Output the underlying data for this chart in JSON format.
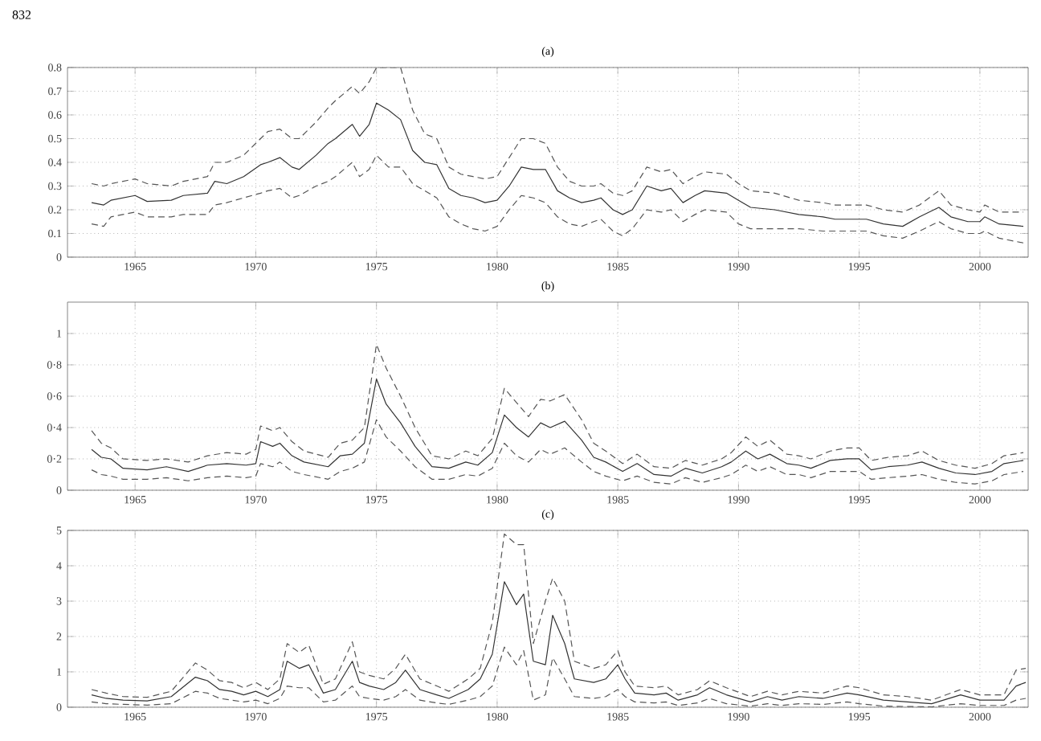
{
  "chart_data": [
    {
      "type": "line",
      "title": "(a)",
      "annotations": [
        "832"
      ],
      "grid": true,
      "xlim": [
        1962.2,
        2002
      ],
      "xticks": [
        1965,
        1970,
        1975,
        1980,
        1985,
        1990,
        1995,
        2000
      ],
      "ylim": [
        0,
        0.8
      ],
      "yticks": [
        0,
        0.1,
        0.2,
        0.3,
        0.4,
        0.5,
        0.6,
        0.7,
        0.8
      ],
      "x": [
        1963.2,
        1963.7,
        1964,
        1965,
        1965.5,
        1966.5,
        1967,
        1968,
        1968.3,
        1968.8,
        1969.5,
        1970.2,
        1970.5,
        1971,
        1971.5,
        1971.8,
        1972.5,
        1973,
        1973.3,
        1974,
        1974.3,
        1974.7,
        1975,
        1975.5,
        1976,
        1976.5,
        1977,
        1977.5,
        1978,
        1978.5,
        1979,
        1979.5,
        1980,
        1980.5,
        1981,
        1981.5,
        1982,
        1982.5,
        1983,
        1983.5,
        1984,
        1984.3,
        1984.8,
        1985.2,
        1985.6,
        1986.2,
        1986.8,
        1987.2,
        1987.7,
        1988.2,
        1988.6,
        1989.5,
        1990,
        1990.5,
        1991.5,
        1992.5,
        1993.5,
        1994,
        1995.3,
        1996,
        1996.8,
        1997.5,
        1998.3,
        1998.8,
        1999.5,
        2000,
        2000.2,
        2000.8,
        2001.8
      ],
      "series": [
        {
          "color": "#333333",
          "line_style": "solid",
          "values": [
            0.23,
            0.22,
            0.24,
            0.26,
            0.235,
            0.24,
            0.26,
            0.27,
            0.32,
            0.31,
            0.34,
            0.39,
            0.4,
            0.42,
            0.38,
            0.37,
            0.43,
            0.48,
            0.5,
            0.56,
            0.51,
            0.56,
            0.65,
            0.62,
            0.58,
            0.45,
            0.4,
            0.39,
            0.29,
            0.26,
            0.25,
            0.23,
            0.24,
            0.3,
            0.38,
            0.37,
            0.37,
            0.28,
            0.25,
            0.23,
            0.24,
            0.25,
            0.2,
            0.18,
            0.2,
            0.3,
            0.28,
            0.29,
            0.23,
            0.26,
            0.28,
            0.27,
            0.24,
            0.21,
            0.2,
            0.18,
            0.17,
            0.16,
            0.16,
            0.14,
            0.13,
            0.17,
            0.21,
            0.17,
            0.15,
            0.15,
            0.17,
            0.14,
            0.13
          ]
        },
        {
          "color": "#555555",
          "line_style": "dashed",
          "values": [
            0.14,
            0.13,
            0.17,
            0.19,
            0.17,
            0.17,
            0.18,
            0.18,
            0.22,
            0.23,
            0.25,
            0.27,
            0.28,
            0.29,
            0.25,
            0.26,
            0.3,
            0.32,
            0.34,
            0.4,
            0.34,
            0.37,
            0.43,
            0.38,
            0.38,
            0.31,
            0.28,
            0.25,
            0.17,
            0.14,
            0.12,
            0.11,
            0.13,
            0.2,
            0.26,
            0.25,
            0.23,
            0.17,
            0.14,
            0.13,
            0.15,
            0.16,
            0.11,
            0.09,
            0.12,
            0.2,
            0.19,
            0.2,
            0.15,
            0.18,
            0.2,
            0.19,
            0.14,
            0.12,
            0.12,
            0.12,
            0.11,
            0.11,
            0.11,
            0.09,
            0.08,
            0.11,
            0.15,
            0.12,
            0.1,
            0.1,
            0.11,
            0.08,
            0.06
          ]
        },
        {
          "color": "#555555",
          "line_style": "dashed",
          "values": [
            0.31,
            0.3,
            0.31,
            0.33,
            0.31,
            0.3,
            0.32,
            0.34,
            0.4,
            0.4,
            0.43,
            0.5,
            0.53,
            0.54,
            0.5,
            0.5,
            0.57,
            0.63,
            0.66,
            0.72,
            0.69,
            0.74,
            0.8,
            0.8,
            0.8,
            0.62,
            0.52,
            0.5,
            0.38,
            0.35,
            0.34,
            0.33,
            0.34,
            0.42,
            0.5,
            0.5,
            0.48,
            0.38,
            0.32,
            0.3,
            0.3,
            0.31,
            0.27,
            0.26,
            0.28,
            0.38,
            0.36,
            0.37,
            0.31,
            0.34,
            0.36,
            0.35,
            0.31,
            0.28,
            0.27,
            0.24,
            0.23,
            0.22,
            0.22,
            0.2,
            0.19,
            0.22,
            0.28,
            0.22,
            0.2,
            0.19,
            0.22,
            0.19,
            0.19
          ]
        }
      ]
    },
    {
      "type": "line",
      "title": "(b)",
      "grid": true,
      "xlim": [
        1962.2,
        2002
      ],
      "xticks": [
        1965,
        1970,
        1975,
        1980,
        1985,
        1990,
        1995,
        2000
      ],
      "ylim": [
        0,
        1.2
      ],
      "yticks": [
        0,
        {
          "value": 0.2,
          "label": "0·2"
        },
        {
          "value": 0.4,
          "label": "0·4"
        },
        {
          "value": 0.6,
          "label": "0·6"
        },
        {
          "value": 0.8,
          "label": "0·8"
        },
        1
      ],
      "x": [
        1963.2,
        1963.6,
        1964,
        1964.5,
        1965.5,
        1966.3,
        1967.2,
        1968,
        1968.8,
        1969.6,
        1970,
        1970.2,
        1970.7,
        1971,
        1971.5,
        1972,
        1973,
        1973.5,
        1974,
        1974.5,
        1975,
        1975.4,
        1976,
        1976.6,
        1977.3,
        1978,
        1978.7,
        1979.2,
        1979.8,
        1980.3,
        1980.8,
        1981.3,
        1981.8,
        1982.2,
        1982.8,
        1983.5,
        1984,
        1984.5,
        1985.2,
        1985.8,
        1986.5,
        1987.2,
        1987.8,
        1988.5,
        1989.3,
        1989.7,
        1990.3,
        1990.8,
        1991.3,
        1992,
        1992.5,
        1993,
        1993.8,
        1994.5,
        1995,
        1995.5,
        1996.2,
        1997,
        1997.6,
        1998.3,
        1999,
        1999.8,
        2000.5,
        2001,
        2001.8
      ],
      "series": [
        {
          "color": "#333333",
          "line_style": "solid",
          "values": [
            0.26,
            0.21,
            0.2,
            0.14,
            0.13,
            0.15,
            0.12,
            0.16,
            0.17,
            0.16,
            0.17,
            0.31,
            0.28,
            0.3,
            0.22,
            0.18,
            0.15,
            0.22,
            0.23,
            0.3,
            0.71,
            0.55,
            0.43,
            0.28,
            0.15,
            0.14,
            0.18,
            0.16,
            0.24,
            0.48,
            0.4,
            0.34,
            0.43,
            0.4,
            0.44,
            0.32,
            0.21,
            0.18,
            0.12,
            0.17,
            0.1,
            0.09,
            0.14,
            0.11,
            0.15,
            0.18,
            0.25,
            0.2,
            0.23,
            0.17,
            0.16,
            0.14,
            0.19,
            0.2,
            0.2,
            0.13,
            0.15,
            0.16,
            0.18,
            0.14,
            0.11,
            0.1,
            0.12,
            0.17,
            0.19
          ]
        },
        {
          "color": "#555555",
          "line_style": "dashed",
          "values": [
            0.13,
            0.1,
            0.09,
            0.07,
            0.07,
            0.08,
            0.06,
            0.08,
            0.09,
            0.08,
            0.09,
            0.17,
            0.15,
            0.18,
            0.12,
            0.1,
            0.07,
            0.12,
            0.14,
            0.18,
            0.45,
            0.34,
            0.25,
            0.15,
            0.07,
            0.07,
            0.1,
            0.09,
            0.14,
            0.3,
            0.22,
            0.18,
            0.26,
            0.23,
            0.27,
            0.18,
            0.12,
            0.09,
            0.06,
            0.09,
            0.05,
            0.04,
            0.08,
            0.05,
            0.08,
            0.1,
            0.16,
            0.12,
            0.15,
            0.1,
            0.1,
            0.08,
            0.12,
            0.12,
            0.12,
            0.07,
            0.08,
            0.09,
            0.1,
            0.07,
            0.05,
            0.04,
            0.06,
            0.1,
            0.12
          ]
        },
        {
          "color": "#555555",
          "line_style": "dashed",
          "values": [
            0.38,
            0.3,
            0.27,
            0.2,
            0.19,
            0.2,
            0.18,
            0.22,
            0.24,
            0.23,
            0.26,
            0.41,
            0.38,
            0.4,
            0.31,
            0.25,
            0.21,
            0.3,
            0.32,
            0.4,
            0.93,
            0.78,
            0.6,
            0.4,
            0.22,
            0.2,
            0.25,
            0.22,
            0.33,
            0.65,
            0.56,
            0.47,
            0.58,
            0.57,
            0.61,
            0.45,
            0.3,
            0.25,
            0.17,
            0.23,
            0.15,
            0.14,
            0.19,
            0.16,
            0.2,
            0.24,
            0.34,
            0.28,
            0.32,
            0.23,
            0.22,
            0.2,
            0.25,
            0.27,
            0.27,
            0.19,
            0.21,
            0.22,
            0.25,
            0.19,
            0.16,
            0.14,
            0.17,
            0.22,
            0.24
          ]
        }
      ]
    },
    {
      "type": "line",
      "title": "(c)",
      "grid": true,
      "xlim": [
        1962.2,
        2002
      ],
      "xticks": [
        1965,
        1970,
        1975,
        1980,
        1985,
        1990,
        1995,
        2000
      ],
      "ylim": [
        0,
        5
      ],
      "yticks": [
        0,
        1,
        2,
        3,
        4,
        5
      ],
      "x": [
        1963.2,
        1963.8,
        1964.5,
        1965.5,
        1966.5,
        1967.5,
        1968,
        1968.5,
        1969,
        1969.5,
        1970,
        1970.5,
        1971,
        1971.3,
        1971.8,
        1972.2,
        1972.8,
        1973.3,
        1974,
        1974.3,
        1974.7,
        1975.3,
        1975.8,
        1976.2,
        1976.8,
        1977.5,
        1978,
        1978.8,
        1979.3,
        1979.8,
        1980.3,
        1980.8,
        1981.1,
        1981.5,
        1982,
        1982.3,
        1982.8,
        1983.2,
        1984,
        1984.5,
        1985,
        1985.3,
        1985.7,
        1986.5,
        1987,
        1987.5,
        1988.3,
        1988.8,
        1989.5,
        1990.5,
        1991.2,
        1991.8,
        1992.5,
        1993.5,
        1994.5,
        1995,
        1996,
        1997,
        1998,
        1999.2,
        2000,
        2001,
        2001.5,
        2001.9
      ],
      "series": [
        {
          "color": "#333333",
          "line_style": "solid",
          "values": [
            0.35,
            0.25,
            0.2,
            0.18,
            0.3,
            0.85,
            0.75,
            0.5,
            0.45,
            0.35,
            0.45,
            0.3,
            0.5,
            1.3,
            1.1,
            1.2,
            0.4,
            0.5,
            1.3,
            0.7,
            0.6,
            0.5,
            0.7,
            1.05,
            0.5,
            0.35,
            0.25,
            0.5,
            0.8,
            1.5,
            3.55,
            2.9,
            3.2,
            1.3,
            1.2,
            2.6,
            1.8,
            0.8,
            0.7,
            0.8,
            1.2,
            0.8,
            0.4,
            0.35,
            0.4,
            0.2,
            0.35,
            0.55,
            0.35,
            0.15,
            0.3,
            0.2,
            0.3,
            0.25,
            0.4,
            0.35,
            0.2,
            0.15,
            0.1,
            0.35,
            0.2,
            0.2,
            0.6,
            0.7
          ]
        },
        {
          "color": "#555555",
          "line_style": "dashed",
          "values": [
            0.15,
            0.1,
            0.08,
            0.06,
            0.1,
            0.45,
            0.4,
            0.25,
            0.2,
            0.15,
            0.2,
            0.1,
            0.25,
            0.6,
            0.55,
            0.55,
            0.15,
            0.2,
            0.6,
            0.3,
            0.25,
            0.2,
            0.3,
            0.5,
            0.2,
            0.12,
            0.08,
            0.2,
            0.3,
            0.6,
            1.7,
            1.2,
            1.6,
            0.2,
            0.35,
            1.4,
            0.8,
            0.3,
            0.25,
            0.3,
            0.5,
            0.3,
            0.15,
            0.12,
            0.15,
            0.05,
            0.12,
            0.25,
            0.1,
            0.03,
            0.1,
            0.05,
            0.1,
            0.08,
            0.15,
            0.1,
            0.03,
            0.02,
            0.01,
            0.1,
            0.05,
            0.05,
            0.2,
            0.25
          ]
        },
        {
          "color": "#555555",
          "line_style": "dashed",
          "values": [
            0.5,
            0.4,
            0.3,
            0.28,
            0.45,
            1.25,
            1.05,
            0.75,
            0.7,
            0.55,
            0.7,
            0.5,
            0.8,
            1.8,
            1.55,
            1.75,
            0.65,
            0.8,
            1.85,
            1.0,
            0.9,
            0.8,
            1.1,
            1.5,
            0.8,
            0.6,
            0.45,
            0.8,
            1.1,
            2.4,
            4.9,
            4.6,
            4.6,
            1.8,
            3.0,
            3.65,
            3.0,
            1.3,
            1.1,
            1.2,
            1.6,
            1.0,
            0.6,
            0.55,
            0.6,
            0.35,
            0.5,
            0.75,
            0.55,
            0.3,
            0.45,
            0.35,
            0.45,
            0.4,
            0.6,
            0.55,
            0.35,
            0.3,
            0.2,
            0.5,
            0.35,
            0.35,
            1.05,
            1.1
          ]
        }
      ]
    }
  ]
}
